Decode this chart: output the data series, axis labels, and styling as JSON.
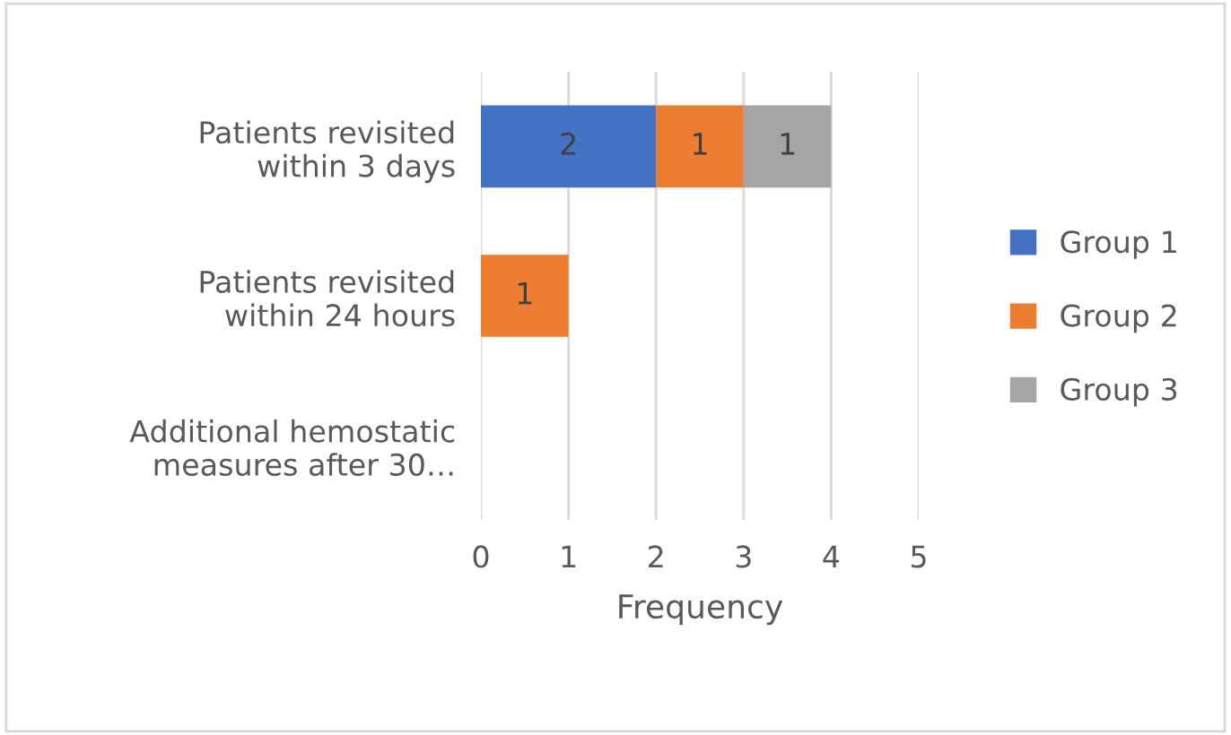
{
  "chart_data": {
    "type": "bar",
    "orientation": "horizontal",
    "stacked": true,
    "categories": [
      "Patients revisited within 3 days",
      "Patients revisited within 24 hours",
      "Additional hemostatic measures after 30…"
    ],
    "series": [
      {
        "name": "Group 1",
        "color": "#4472c4",
        "values": [
          2,
          0,
          0
        ],
        "value_labels": [
          "2",
          null,
          null
        ]
      },
      {
        "name": "Group 2",
        "color": "#ed7d31",
        "values": [
          1,
          1,
          0
        ],
        "value_labels": [
          "1",
          "1",
          null
        ]
      },
      {
        "name": "Group 3",
        "color": "#a5a5a5",
        "values": [
          1,
          0,
          0
        ],
        "value_labels": [
          "1",
          null,
          null
        ]
      }
    ],
    "xlim": [
      0,
      5
    ],
    "xticks": [
      0,
      1,
      2,
      3,
      4,
      5
    ],
    "xlabel": "Frequency",
    "grid": "x",
    "legend": "right"
  }
}
